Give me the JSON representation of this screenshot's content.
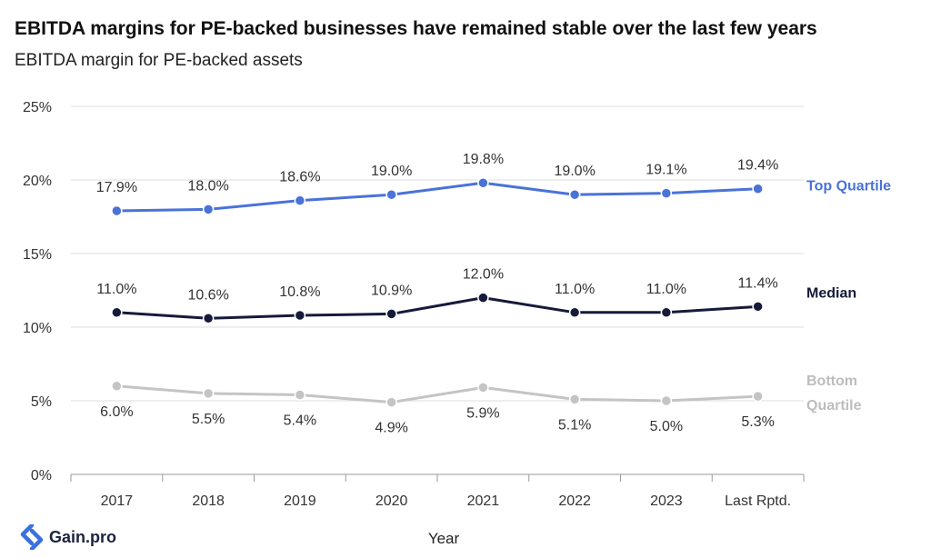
{
  "header": {
    "title": "EBITDA margins for PE-backed businesses have remained stable over the last few years",
    "subtitle": "EBITDA margin for PE-backed assets"
  },
  "brand": {
    "name": "Gain.pro"
  },
  "chart_data": {
    "type": "line",
    "title": "EBITDA margins for PE-backed businesses have remained stable over the last few years",
    "subtitle": "EBITDA margin for PE-backed assets",
    "xlabel": "Year",
    "ylabel": "",
    "categories": [
      "2017",
      "2018",
      "2019",
      "2020",
      "2021",
      "2022",
      "2023",
      "Last Rptd."
    ],
    "ylim": [
      0,
      25
    ],
    "yticks": [
      0,
      5,
      10,
      15,
      20,
      25
    ],
    "ytick_labels": [
      "0%",
      "5%",
      "10%",
      "15%",
      "20%",
      "25%"
    ],
    "grid": true,
    "series": [
      {
        "name": "Top Quartile",
        "color": "#4a72d8",
        "values": [
          17.9,
          18.0,
          18.6,
          19.0,
          19.8,
          19.0,
          19.1,
          19.4
        ],
        "labels": [
          "17.9%",
          "18.0%",
          "18.6%",
          "19.0%",
          "19.8%",
          "19.0%",
          "19.1%",
          "19.4%"
        ]
      },
      {
        "name": "Median",
        "color": "#161a3a",
        "values": [
          11.0,
          10.6,
          10.8,
          10.9,
          12.0,
          11.0,
          11.0,
          11.4
        ],
        "labels": [
          "11.0%",
          "10.6%",
          "10.8%",
          "10.9%",
          "12.0%",
          "11.0%",
          "11.0%",
          "11.4%"
        ]
      },
      {
        "name": "Bottom Quartile",
        "color": "#c4c4c4",
        "values": [
          6.0,
          5.5,
          5.4,
          4.9,
          5.9,
          5.1,
          5.0,
          5.3
        ],
        "labels": [
          "6.0%",
          "5.5%",
          "5.4%",
          "4.9%",
          "5.9%",
          "5.1%",
          "5.0%",
          "5.3%"
        ]
      }
    ]
  }
}
